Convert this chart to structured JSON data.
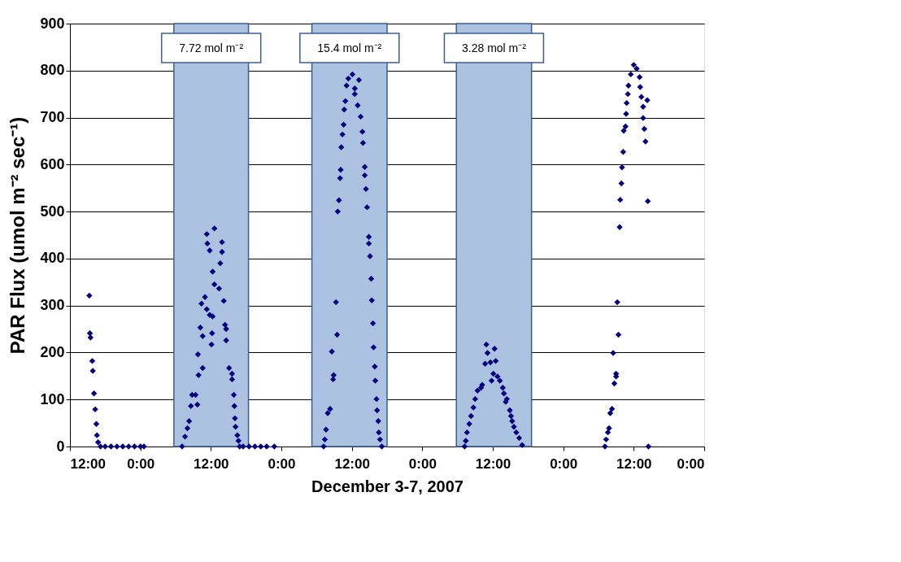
{
  "chart_data": {
    "type": "scatter",
    "xlabel": "December 3-7, 2007",
    "ylabel": "PAR Flux (umol m⁻² sec⁻¹)",
    "xlim": [
      "2007-12-03T12:00",
      "2007-12-08T00:00"
    ],
    "xticks": [
      {
        "value": "2007-12-03T12:00",
        "label": "12:00"
      },
      {
        "value": "2007-12-04T00:00",
        "label": "0:00"
      },
      {
        "value": "2007-12-04T12:00",
        "label": "12:00"
      },
      {
        "value": "2007-12-05T00:00",
        "label": "0:00"
      },
      {
        "value": "2007-12-05T12:00",
        "label": "12:00"
      },
      {
        "value": "2007-12-06T00:00",
        "label": "0:00"
      },
      {
        "value": "2007-12-06T12:00",
        "label": "12:00"
      },
      {
        "value": "2007-12-07T00:00",
        "label": "0:00"
      },
      {
        "value": "2007-12-07T12:00",
        "label": "12:00"
      },
      {
        "value": "2007-12-08T00:00",
        "label": "0:00"
      }
    ],
    "ylim": [
      0,
      900
    ],
    "yticks": [
      0,
      100,
      200,
      300,
      400,
      500,
      600,
      700,
      800,
      900
    ],
    "grid": "y",
    "marker": "diamond",
    "bands": [
      {
        "axis": "x",
        "from": "2007-12-04T05:42",
        "to": "2007-12-04T18:24",
        "label": "7.72 mol m⁻²",
        "color": "#abc2e0"
      },
      {
        "axis": "x",
        "from": "2007-12-05T05:12",
        "to": "2007-12-05T18:00",
        "label": "15.4 mol m⁻²",
        "color": "#abc2e0"
      },
      {
        "axis": "x",
        "from": "2007-12-06T05:48",
        "to": "2007-12-06T18:36",
        "label": "3.28 mol m⁻²",
        "color": "#abc2e0"
      }
    ],
    "series": [
      {
        "color": "#000080",
        "x": [
          "2007-12-03T15:18",
          "2007-12-03T15:24",
          "2007-12-03T15:30",
          "2007-12-03T15:48",
          "2007-12-03T15:54",
          "2007-12-03T16:06",
          "2007-12-03T16:18",
          "2007-12-03T16:30",
          "2007-12-03T16:36",
          "2007-12-03T16:48",
          "2007-12-03T17:12",
          "2007-12-03T18:00",
          "2007-12-03T19:00",
          "2007-12-03T20:00",
          "2007-12-03T21:00",
          "2007-12-03T22:00",
          "2007-12-03T23:00",
          "2007-12-04T00:00",
          "2007-12-04T00:36",
          "2007-12-04T07:06",
          "2007-12-04T07:36",
          "2007-12-04T08:00",
          "2007-12-04T08:18",
          "2007-12-04T08:36",
          "2007-12-04T08:48",
          "2007-12-04T09:24",
          "2007-12-04T09:42",
          "2007-12-04T09:54",
          "2007-12-04T09:48",
          "2007-12-04T10:36",
          "2007-12-04T10:12",
          "2007-12-04T10:24",
          "2007-12-04T11:00",
          "2007-12-04T11:18",
          "2007-12-04T11:48",
          "2007-12-04T12:18",
          "2007-12-04T10:36",
          "2007-12-04T12:12",
          "2007-12-04T12:06",
          "2007-12-04T12:18",
          "2007-12-04T12:36",
          "2007-12-04T13:24",
          "2007-12-04T11:18",
          "2007-12-04T11:24",
          "2007-12-04T11:48",
          "2007-12-04T12:36",
          "2007-12-04T13:54",
          "2007-12-04T13:54",
          "2007-12-04T13:36",
          "2007-12-04T14:12",
          "2007-12-04T14:24",
          "2007-12-04T14:36",
          "2007-12-04T14:36",
          "2007-12-04T15:06",
          "2007-12-04T15:36",
          "2007-12-04T15:36",
          "2007-12-04T15:54",
          "2007-12-04T16:00",
          "2007-12-04T16:06",
          "2007-12-04T16:12",
          "2007-12-04T16:30",
          "2007-12-04T16:42",
          "2007-12-04T16:54",
          "2007-12-04T17:30",
          "2007-12-04T18:30",
          "2007-12-04T19:30",
          "2007-12-04T20:30",
          "2007-12-04T21:30",
          "2007-12-04T22:48",
          "2007-12-05T07:12",
          "2007-12-05T07:24",
          "2007-12-05T07:36",
          "2007-12-05T07:54",
          "2007-12-05T08:18",
          "2007-12-05T08:48",
          "2007-12-05T08:54",
          "2007-12-05T08:36",
          "2007-12-05T09:30",
          "2007-12-05T09:18",
          "2007-12-05T09:36",
          "2007-12-05T09:48",
          "2007-12-05T10:00",
          "2007-12-05T10:06",
          "2007-12-05T10:12",
          "2007-12-05T10:24",
          "2007-12-05T10:36",
          "2007-12-05T10:42",
          "2007-12-05T10:54",
          "2007-12-05T11:06",
          "2007-12-05T11:24",
          "2007-12-05T12:06",
          "2007-12-05T12:30",
          "2007-12-05T12:30",
          "2007-12-05T13:12",
          "2007-12-05T13:00",
          "2007-12-05T13:30",
          "2007-12-05T13:48",
          "2007-12-05T13:54",
          "2007-12-05T14:12",
          "2007-12-05T14:12",
          "2007-12-05T14:24",
          "2007-12-05T14:36",
          "2007-12-05T14:54",
          "2007-12-05T14:54",
          "2007-12-05T15:06",
          "2007-12-05T15:18",
          "2007-12-05T15:24",
          "2007-12-05T15:36",
          "2007-12-05T15:42",
          "2007-12-05T15:54",
          "2007-12-05T16:00",
          "2007-12-05T16:12",
          "2007-12-05T16:18",
          "2007-12-05T16:30",
          "2007-12-05T16:36",
          "2007-12-05T16:48",
          "2007-12-05T17:06",
          "2007-12-06T07:12",
          "2007-12-06T07:24",
          "2007-12-06T07:36",
          "2007-12-06T08:00",
          "2007-12-06T08:18",
          "2007-12-06T08:42",
          "2007-12-06T09:00",
          "2007-12-06T09:24",
          "2007-12-06T10:00",
          "2007-12-06T10:12",
          "2007-12-06T10:42",
          "2007-12-06T10:54",
          "2007-12-06T11:06",
          "2007-12-06T11:36",
          "2007-12-06T12:06",
          "2007-12-06T12:18",
          "2007-12-06T12:30",
          "2007-12-06T11:48",
          "2007-12-06T12:48",
          "2007-12-06T13:12",
          "2007-12-06T13:42",
          "2007-12-06T13:54",
          "2007-12-06T14:12",
          "2007-12-06T14:24",
          "2007-12-06T14:54",
          "2007-12-06T15:06",
          "2007-12-06T15:18",
          "2007-12-06T15:36",
          "2007-12-06T16:00",
          "2007-12-06T16:30",
          "2007-12-06T17:00",
          "2007-12-07T07:06",
          "2007-12-07T07:18",
          "2007-12-07T07:36",
          "2007-12-07T07:48",
          "2007-12-07T08:00",
          "2007-12-07T08:18",
          "2007-12-07T08:42",
          "2007-12-07T09:00",
          "2007-12-07T09:00",
          "2007-12-07T08:30",
          "2007-12-07T09:24",
          "2007-12-07T09:12",
          "2007-12-07T09:36",
          "2007-12-07T09:42",
          "2007-12-07T09:54",
          "2007-12-07T10:00",
          "2007-12-07T10:12",
          "2007-12-07T10:18",
          "2007-12-07T10:36",
          "2007-12-07T10:42",
          "2007-12-07T10:48",
          "2007-12-07T11:00",
          "2007-12-07T11:06",
          "2007-12-07T11:30",
          "2007-12-07T12:00",
          "2007-12-07T12:30",
          "2007-12-07T13:00",
          "2007-12-07T13:06",
          "2007-12-07T13:18",
          "2007-12-07T13:36",
          "2007-12-07T14:18",
          "2007-12-07T13:36",
          "2007-12-07T13:48",
          "2007-12-07T14:00",
          "2007-12-07T14:24",
          "2007-12-07T14:30"
        ],
        "values": [
          321,
          241,
          232,
          182,
          161,
          113,
          79,
          48,
          24,
          9,
          0,
          0,
          0,
          0,
          0,
          0,
          0,
          0,
          0,
          0,
          21,
          39,
          54,
          86,
          110,
          110,
          89,
          152,
          196,
          167,
          253,
          304,
          318,
          292,
          280,
          277,
          235,
          241,
          217,
          372,
          345,
          336,
          452,
          432,
          417,
          464,
          435,
          414,
          390,
          310,
          259,
          250,
          226,
          167,
          155,
          143,
          110,
          86,
          60,
          42,
          24,
          12,
          0,
          0,
          0,
          0,
          0,
          0,
          0,
          0,
          15,
          36,
          71,
          80,
          143,
          152,
          202,
          238,
          307,
          500,
          524,
          571,
          589,
          637,
          664,
          685,
          717,
          735,
          768,
          783,
          792,
          762,
          750,
          780,
          726,
          702,
          670,
          646,
          595,
          577,
          548,
          509,
          446,
          432,
          405,
          357,
          311,
          262,
          211,
          170,
          140,
          101,
          77,
          54,
          30,
          15,
          0,
          0,
          12,
          30,
          48,
          65,
          83,
          101,
          119,
          125,
          131,
          176,
          217,
          199,
          179,
          155,
          208,
          182,
          140,
          149,
          140,
          125,
          113,
          95,
          101,
          77,
          65,
          54,
          42,
          30,
          18,
          3,
          0,
          15,
          30,
          39,
          71,
          80,
          134,
          149,
          155,
          199,
          238,
          307,
          467,
          525,
          560,
          594,
          627,
          672,
          681,
          708,
          731,
          750,
          768,
          792,
          812,
          804,
          786,
          765,
          744,
          723,
          737,
          699,
          676,
          649,
          522,
          0
        ]
      }
    ]
  }
}
